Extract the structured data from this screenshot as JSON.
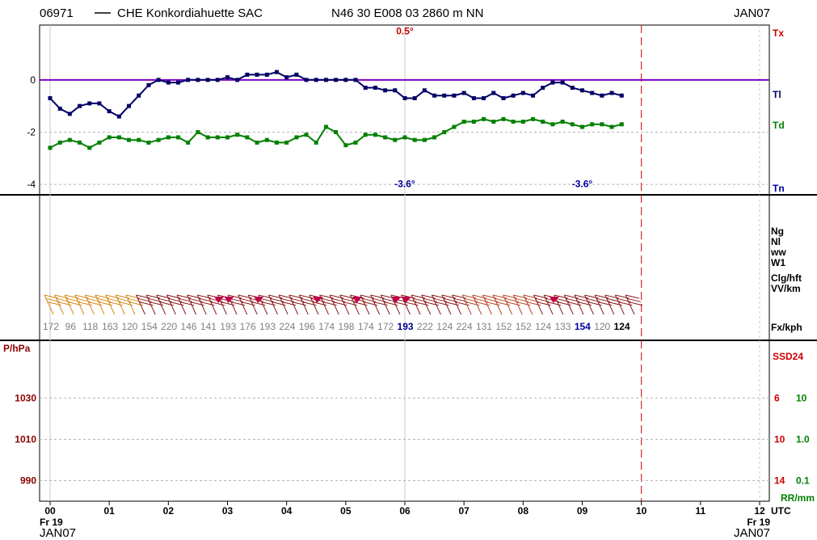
{
  "header": {
    "station_id": "06971",
    "station_name": "CHE Konkordiahuette SAC",
    "location": "N46 30 E008 03 2860 m NN",
    "period": "JAN07"
  },
  "footer": {
    "day_left": "Fr 19",
    "month_left": "JAN07",
    "day_right": "Fr 19",
    "month_right": "JAN07",
    "utc_label": "UTC"
  },
  "panel_labels": {
    "tx": "Tx",
    "tl": "Tl",
    "td": "Td",
    "tn": "Tn",
    "ng": "Ng",
    "nl": "Nl",
    "ww": "ww",
    "w1": "W1",
    "clg": "Clg/hft",
    "vv": "VV/km",
    "fx": "Fx/kph",
    "p": "P/hPa",
    "ssd": "SSD24",
    "rr": "RR/mm"
  },
  "colors": {
    "temperature": "#000066",
    "dewpoint": "#008000",
    "zero_line": "#8000c0",
    "red_label": "#cc0000",
    "pressure_label": "#8b0000",
    "barb_dark": "#8b1a1a",
    "barb_mid": "#b8482a",
    "barb_light": "#d48a1a",
    "flag": "#c0004a",
    "wind_gray": "#808080",
    "wind_blue": "#000099",
    "now_line": "#cc0000"
  },
  "chart_data": [
    {
      "type": "line",
      "panel": "temperature",
      "x_unit": "hour UTC",
      "xlim": [
        0,
        12
      ],
      "x_ticks": [
        "00",
        "01",
        "02",
        "03",
        "04",
        "05",
        "06",
        "07",
        "08",
        "09",
        "10",
        "11",
        "12"
      ],
      "ylim": [
        -4.4,
        2.1
      ],
      "y_ticks": [
        0,
        -2,
        -4
      ],
      "y_tick_labels": [
        "0",
        "-2",
        "-4"
      ],
      "grid": true,
      "series": [
        {
          "name": "Tl",
          "x": [
            0,
            0.167,
            0.333,
            0.5,
            0.667,
            0.833,
            1.0,
            1.167,
            1.333,
            1.5,
            1.667,
            1.833,
            2.0,
            2.167,
            2.333,
            2.5,
            2.667,
            2.833,
            3.0,
            3.167,
            3.333,
            3.5,
            3.667,
            3.833,
            4.0,
            4.167,
            4.333,
            4.5,
            4.667,
            4.833,
            5.0,
            5.167,
            5.333,
            5.5,
            5.667,
            5.833,
            6.0,
            6.167,
            6.333,
            6.5,
            6.667,
            6.833,
            7.0,
            7.167,
            7.333,
            7.5,
            7.667,
            7.833,
            8.0,
            8.167,
            8.333,
            8.5,
            8.667,
            8.833,
            9.0,
            9.167,
            9.333,
            9.5,
            9.667
          ],
          "values": [
            -0.7,
            -1.1,
            -1.3,
            -1.0,
            -0.9,
            -0.9,
            -1.2,
            -1.4,
            -1.0,
            -0.6,
            -0.2,
            0.0,
            -0.1,
            -0.1,
            0.0,
            0.0,
            0.0,
            0.0,
            0.1,
            0.0,
            0.2,
            0.2,
            0.2,
            0.3,
            0.1,
            0.2,
            0.0,
            0.0,
            0.0,
            0.0,
            0.0,
            0.0,
            -0.3,
            -0.3,
            -0.4,
            -0.4,
            -0.7,
            -0.7,
            -0.4,
            -0.6,
            -0.6,
            -0.6,
            -0.5,
            -0.7,
            -0.7,
            -0.5,
            -0.7,
            -0.6,
            -0.5,
            -0.6,
            -0.3,
            -0.1,
            -0.1,
            -0.3,
            -0.4,
            -0.5,
            -0.6,
            -0.5,
            -0.6
          ]
        },
        {
          "name": "Td",
          "x": [
            0,
            0.167,
            0.333,
            0.5,
            0.667,
            0.833,
            1.0,
            1.167,
            1.333,
            1.5,
            1.667,
            1.833,
            2.0,
            2.167,
            2.333,
            2.5,
            2.667,
            2.833,
            3.0,
            3.167,
            3.333,
            3.5,
            3.667,
            3.833,
            4.0,
            4.167,
            4.333,
            4.5,
            4.667,
            4.833,
            5.0,
            5.167,
            5.333,
            5.5,
            5.667,
            5.833,
            6.0,
            6.167,
            6.333,
            6.5,
            6.667,
            6.833,
            7.0,
            7.167,
            7.333,
            7.5,
            7.667,
            7.833,
            8.0,
            8.167,
            8.333,
            8.5,
            8.667,
            8.833,
            9.0,
            9.167,
            9.333,
            9.5,
            9.667
          ],
          "values": [
            -2.6,
            -2.4,
            -2.3,
            -2.4,
            -2.6,
            -2.4,
            -2.2,
            -2.2,
            -2.3,
            -2.3,
            -2.4,
            -2.3,
            -2.2,
            -2.2,
            -2.4,
            -2.0,
            -2.2,
            -2.2,
            -2.2,
            -2.1,
            -2.2,
            -2.4,
            -2.3,
            -2.4,
            -2.4,
            -2.2,
            -2.1,
            -2.4,
            -1.8,
            -2.0,
            -2.5,
            -2.4,
            -2.1,
            -2.1,
            -2.2,
            -2.3,
            -2.2,
            -2.3,
            -2.3,
            -2.2,
            -2.0,
            -1.8,
            -1.6,
            -1.6,
            -1.5,
            -1.6,
            -1.5,
            -1.6,
            -1.6,
            -1.5,
            -1.6,
            -1.7,
            -1.6,
            -1.7,
            -1.8,
            -1.7,
            -1.7,
            -1.8,
            -1.7
          ]
        }
      ],
      "annotations": [
        {
          "text": "0.5°",
          "x": 6.0,
          "y": 1.75,
          "kind": "max"
        },
        {
          "text": "-3.6°",
          "x": 6.0,
          "y": -4.1,
          "kind": "min"
        },
        {
          "text": "-3.6°",
          "x": 9.0,
          "y": -4.1,
          "kind": "min"
        }
      ],
      "reference_line": {
        "y": 0
      },
      "now_x": 10.0
    },
    {
      "type": "table",
      "panel": "wind",
      "label": "Fx/kph",
      "x_start": 0,
      "x_step": 0.333,
      "gusts": [
        "172",
        "96",
        "118",
        "163",
        "120",
        "154",
        "220",
        "146",
        "141",
        "193",
        "176",
        "193",
        "224",
        "196",
        "174",
        "198",
        "174",
        "172",
        "193",
        "222",
        "124",
        "224",
        "131",
        "152",
        "152",
        "124",
        "133",
        "154",
        "120",
        "124"
      ],
      "gust_colors": [
        "gray",
        "gray",
        "gray",
        "gray",
        "gray",
        "gray",
        "gray",
        "gray",
        "gray",
        "gray",
        "gray",
        "gray",
        "gray",
        "gray",
        "gray",
        "gray",
        "gray",
        "gray",
        "blue",
        "gray",
        "gray",
        "gray",
        "gray",
        "gray",
        "gray",
        "gray",
        "gray",
        "blue",
        "gray",
        "black"
      ],
      "barb_count": 58,
      "flag_positions": [
        2.83,
        3.0,
        3.5,
        4.5,
        5.17,
        5.83,
        6.0,
        8.5
      ]
    },
    {
      "type": "line",
      "panel": "pressure",
      "xlim": [
        0,
        12
      ],
      "ylim": [
        980,
        1058
      ],
      "y_ticks": [
        1030,
        1010,
        990
      ],
      "y_tick_labels": [
        "1030",
        "1010",
        "990"
      ],
      "ssd_tick_labels": [
        "6",
        "10",
        "14"
      ],
      "rr_tick_labels": [
        "10",
        "1.0",
        "0.1"
      ],
      "grid": true,
      "series": []
    }
  ]
}
